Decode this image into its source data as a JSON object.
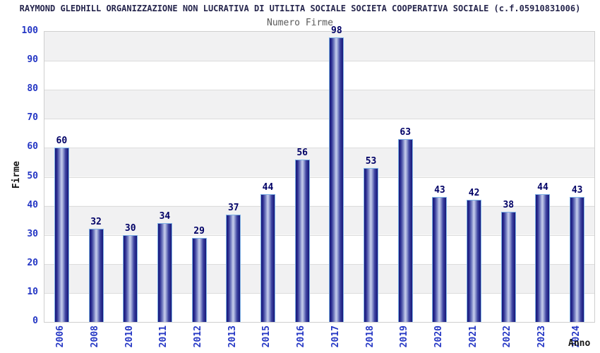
{
  "chart_data": {
    "type": "bar",
    "title": "RAYMOND GLEDHILL ORGANIZZAZIONE NON LUCRATIVA DI UTILITA SOCIALE SOCIETA COOPERATIVA SOCIALE (c.f.05910831006)",
    "subtitle": "Numero Firme",
    "xlabel": "Anno",
    "ylabel": "Firme",
    "categories": [
      "2006",
      "2008",
      "2010",
      "2011",
      "2012",
      "2013",
      "2015",
      "2016",
      "2017",
      "2018",
      "2019",
      "2020",
      "2021",
      "2022",
      "2023",
      "2024"
    ],
    "values": [
      60,
      32,
      30,
      34,
      29,
      37,
      44,
      56,
      98,
      53,
      63,
      43,
      42,
      38,
      44,
      43
    ],
    "ylim": [
      0,
      100
    ],
    "ytick_step": 10,
    "legend": "none",
    "grid": "horizontal-bands-alternating",
    "colors": {
      "bar_edge_dark": "#161678",
      "bar_mid": "#7d87c6",
      "bar_highlight": "#c6cdec",
      "bar_border": "#7fb2e5",
      "axis_tick_label": "#2436c4",
      "value_label": "#000066",
      "title_text": "#26264d",
      "subtitle_text": "#5a5a5a",
      "axis_title_text": "#141414",
      "band_gray": "#f1f1f2",
      "band_white": "#ffffff",
      "gridline": "#dcdcdc",
      "plot_border": "#cfcfcf"
    }
  }
}
